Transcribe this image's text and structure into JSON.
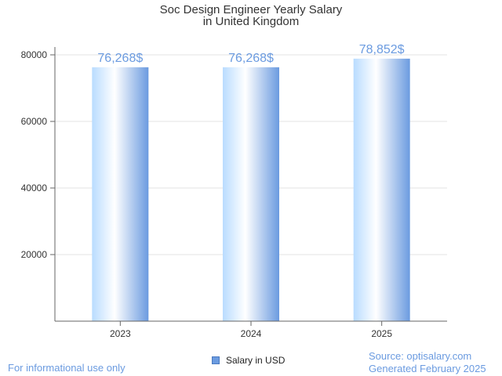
{
  "chart_data": {
    "type": "bar",
    "title_line1": "Soc Design Engineer Yearly Salary",
    "title_line2": "in United Kingdom",
    "categories": [
      "2023",
      "2024",
      "2025"
    ],
    "values": [
      76268,
      76268,
      78852
    ],
    "value_labels": [
      "76,268$",
      "76,268$",
      "78,852$"
    ],
    "series": [
      {
        "name": "Salary in USD",
        "values": [
          76268,
          76268,
          78852
        ]
      }
    ],
    "ylim": [
      0,
      80000
    ],
    "yticks": [
      "20000",
      "40000",
      "60000",
      "80000"
    ],
    "grid": true,
    "legend_position": "bottom",
    "colors": {
      "bar_light": "#cfe6ff",
      "bar_dark": "#6b9be0",
      "label": "#6b9be0"
    }
  },
  "footer": {
    "disclaimer": "For informational use only",
    "source": "Source: optisalary.com",
    "generated": "Generated February 2025"
  }
}
